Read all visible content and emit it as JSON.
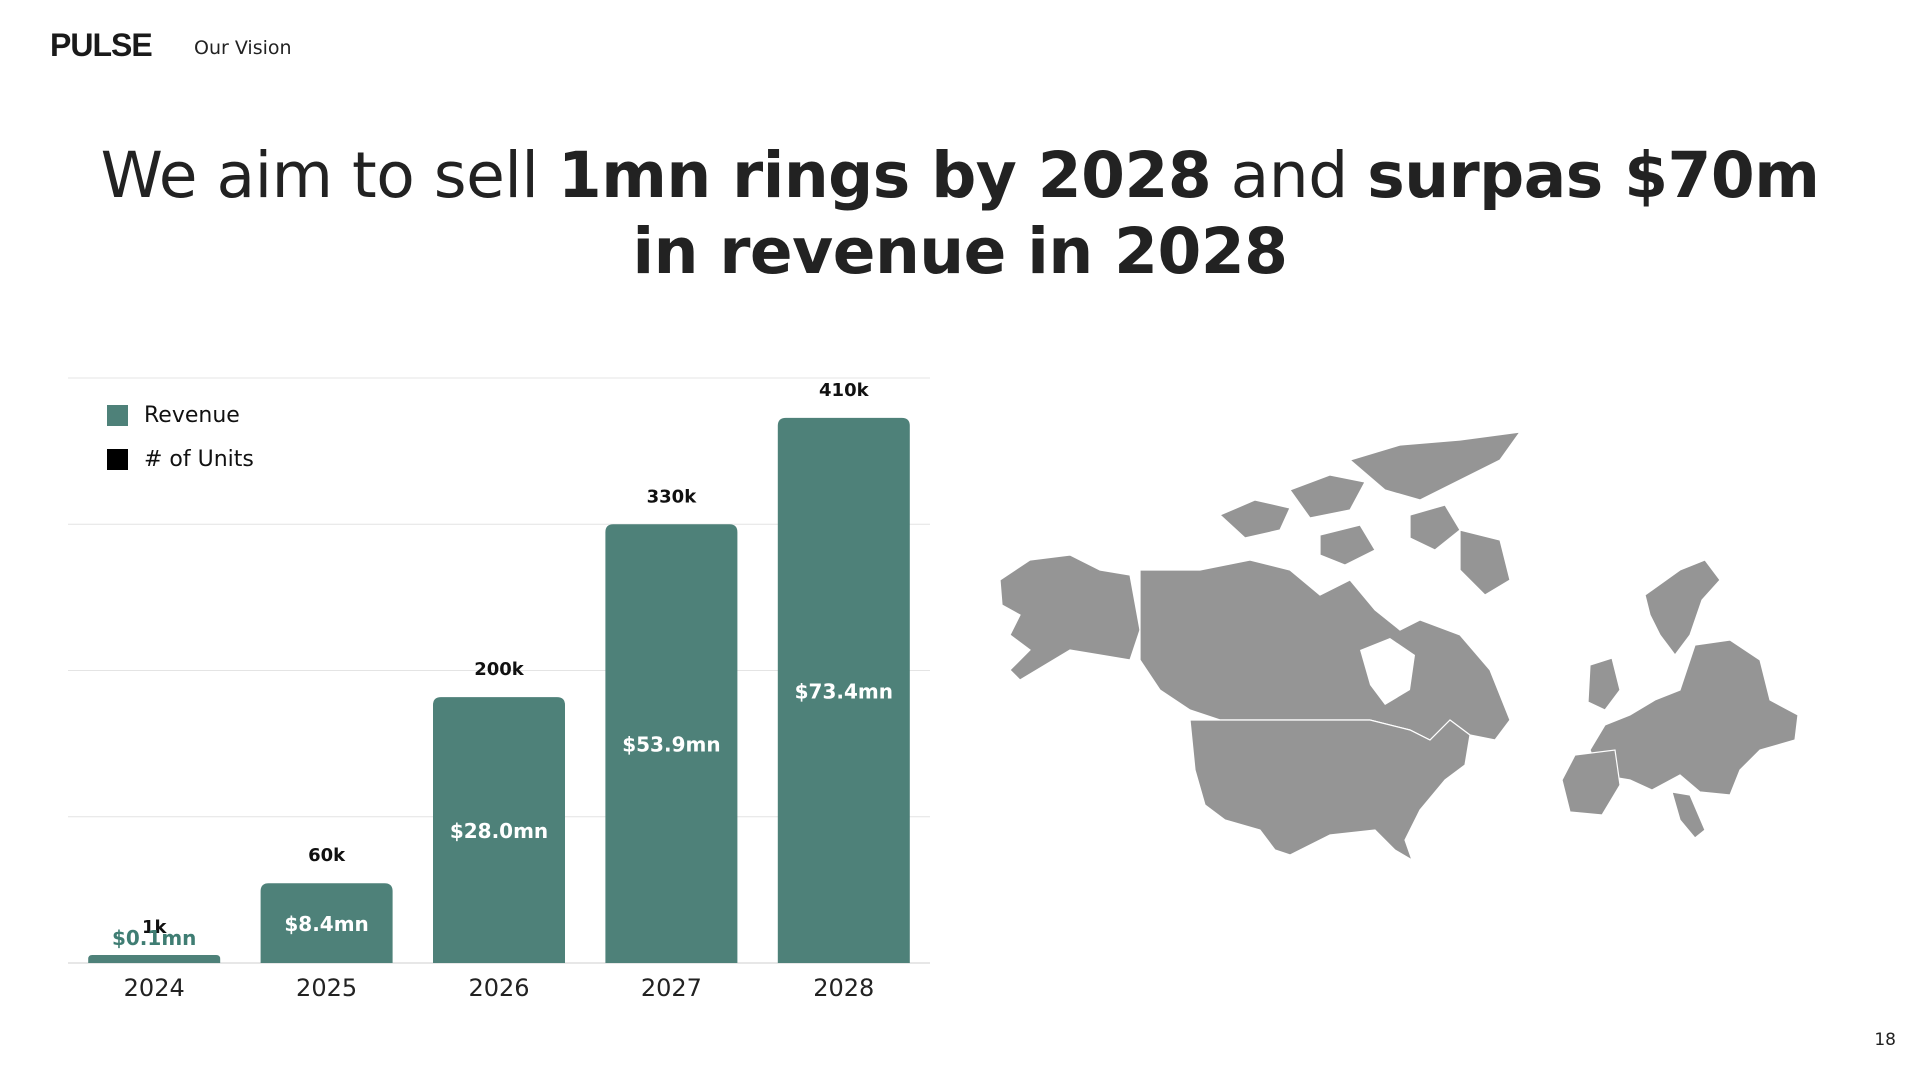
{
  "header": {
    "logo": "PULSE",
    "section": "Our Vision"
  },
  "headline": {
    "p1": "We aim to sell ",
    "b1": "1mn rings by 2028",
    "p2": " and ",
    "b2": "surpas $70m",
    "b3": "in revenue in 2028"
  },
  "colors": {
    "revenue": "#4e8179",
    "units": "#000000",
    "map": "#959595",
    "revenue_text": "#3f7d73"
  },
  "chart_data": {
    "type": "bar",
    "categories": [
      "2024",
      "2025",
      "2026",
      "2027",
      "2028"
    ],
    "series": [
      {
        "name": "Revenue",
        "values": [
          0.1,
          8.4,
          28.0,
          53.9,
          73.4
        ],
        "labels": [
          "$0.1mn",
          "$8.4mn",
          "$28.0mn",
          "$53.9mn",
          "$73.4mn"
        ]
      },
      {
        "name": "# of Units",
        "values": [
          1000,
          60000,
          200000,
          330000,
          410000
        ],
        "labels": [
          "1k",
          "60k",
          "200k",
          "330k",
          "410k"
        ]
      }
    ],
    "legend": [
      {
        "label": "Revenue",
        "color": "#4e8179"
      },
      {
        "label": "# of Units",
        "color": "#000000"
      }
    ],
    "legend_position": "top-left",
    "grid": true,
    "ylim_units": [
      0,
      440000
    ]
  },
  "map": {
    "icon": "north-america-europe-map-icon"
  },
  "page_number": "18"
}
